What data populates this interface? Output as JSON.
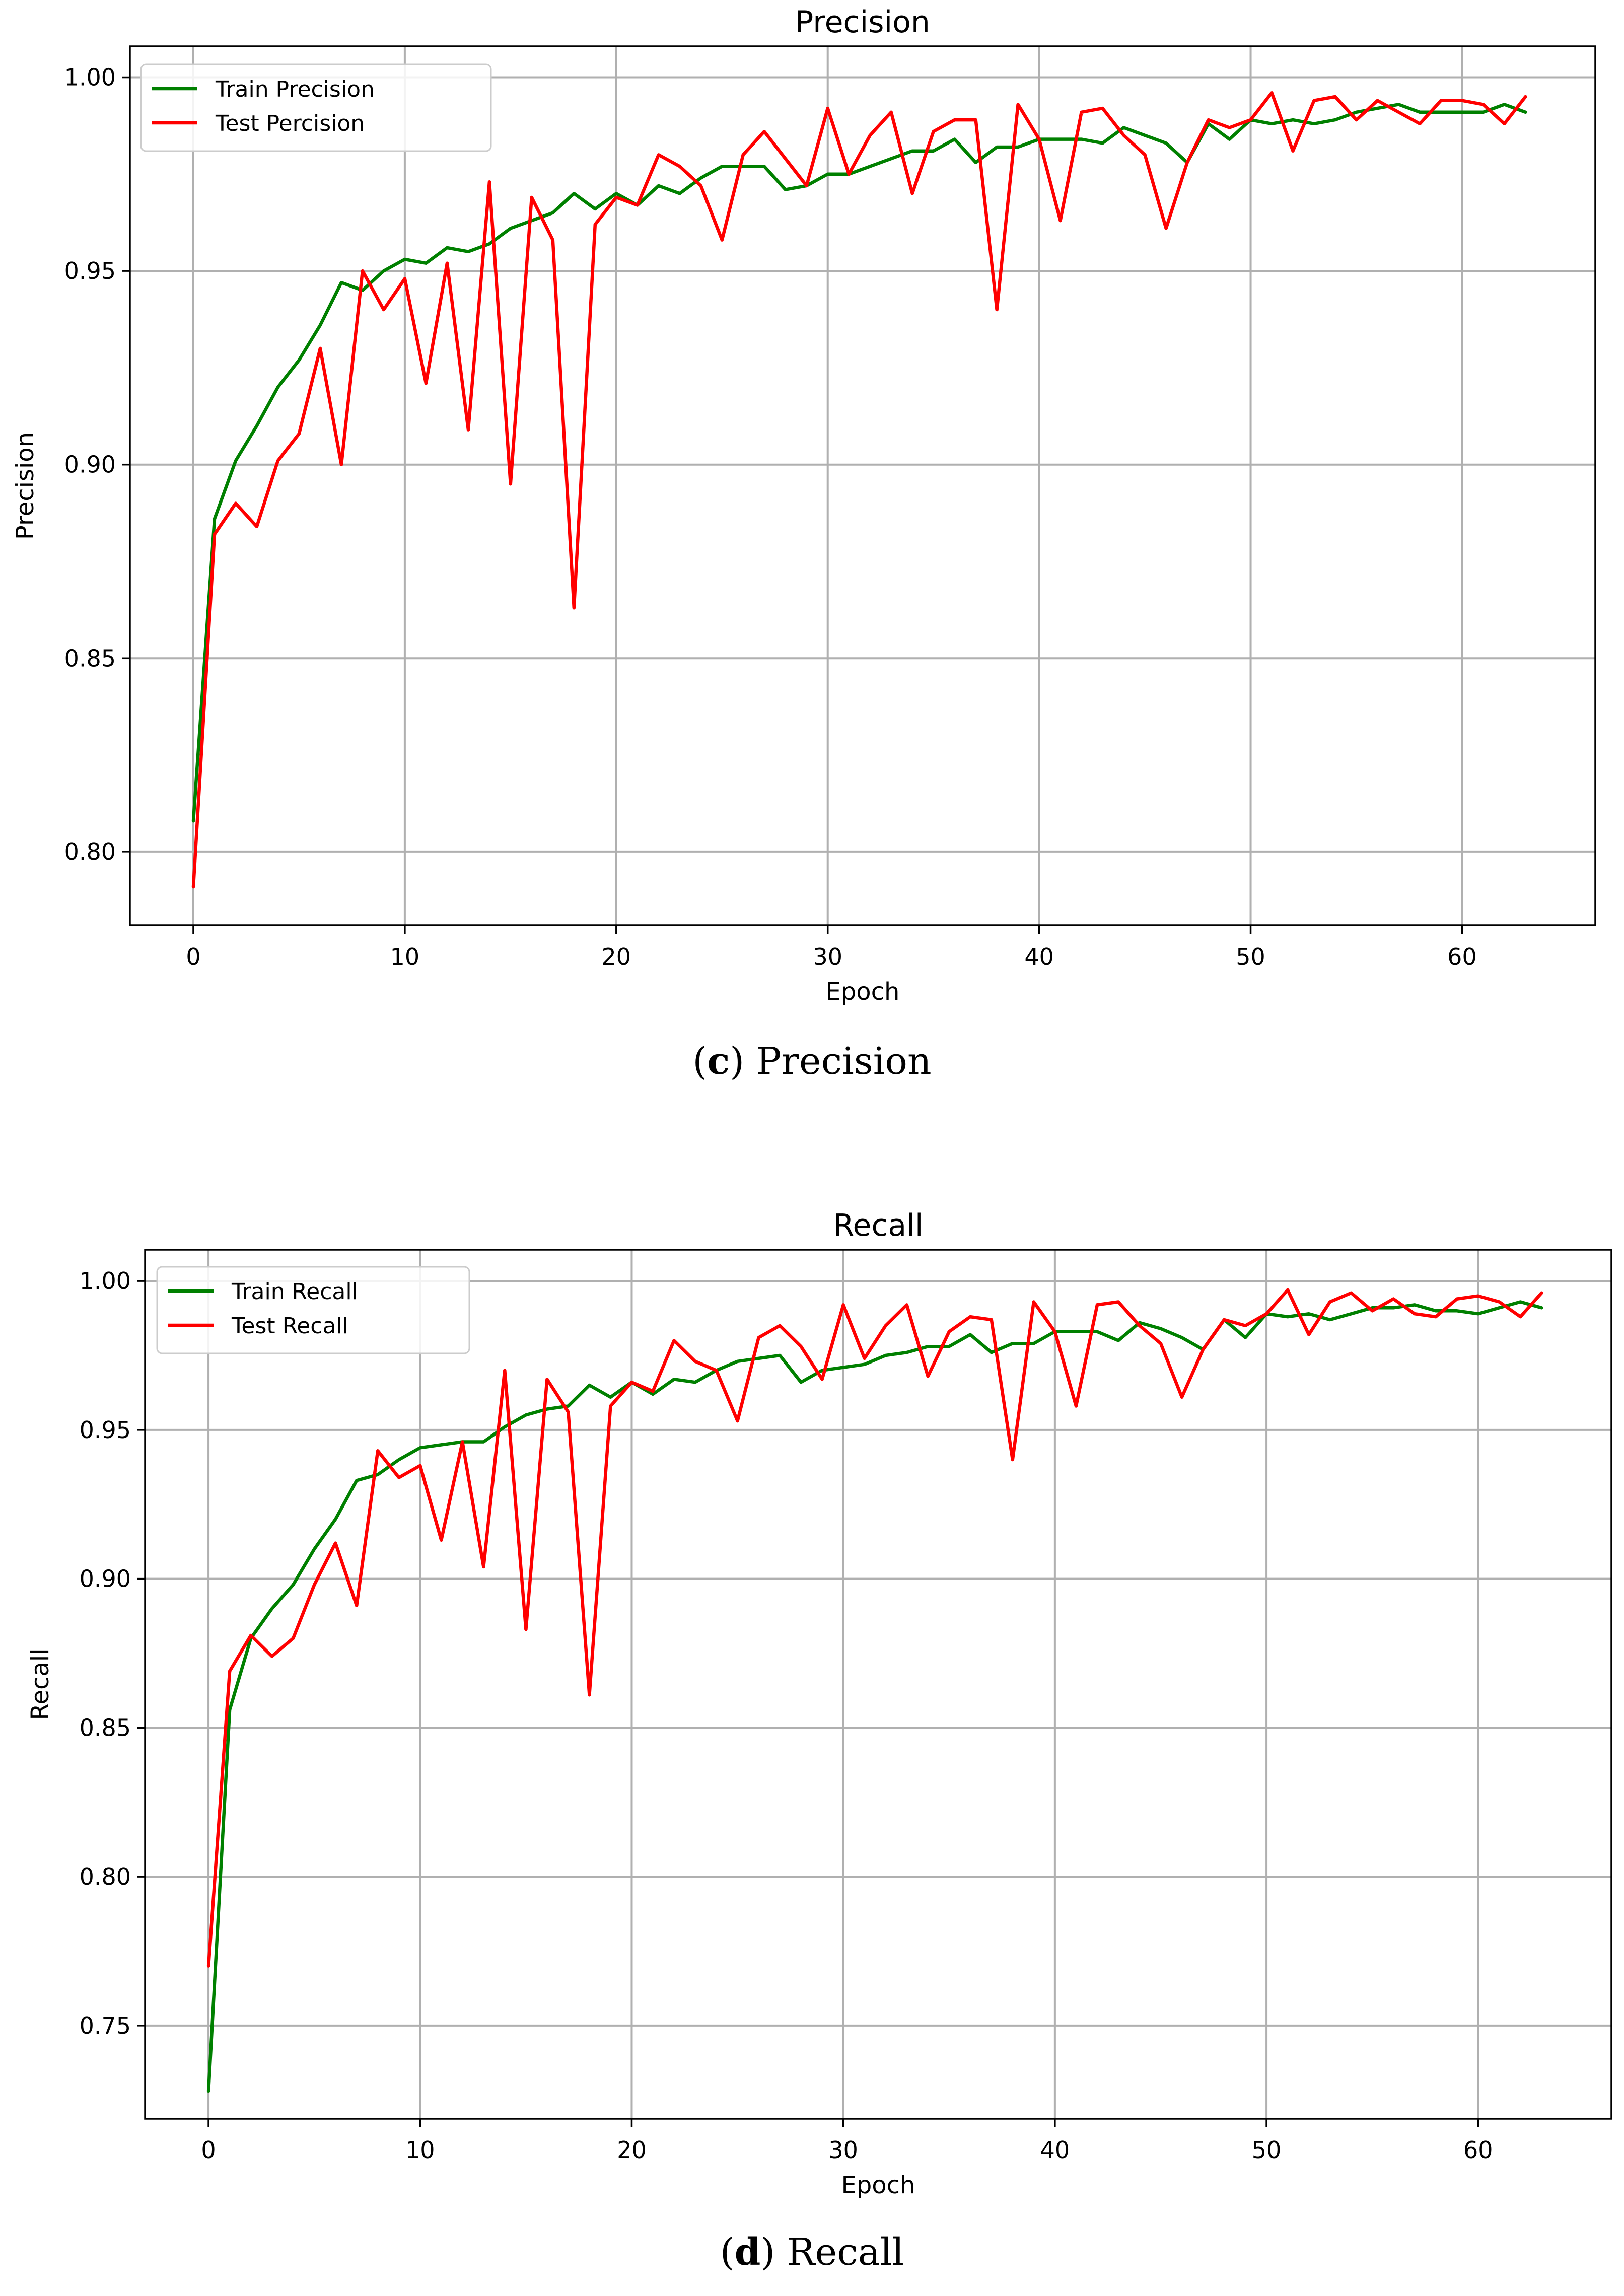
{
  "colors": {
    "train": "#008000",
    "test": "#ff0000",
    "grid": "#b0b0b0",
    "axes": "#000000"
  },
  "chart_data": [
    {
      "type": "line",
      "title": "Precision",
      "xlabel": "Epoch",
      "ylabel": "Precision",
      "xlim": [
        -3,
        66.3
      ],
      "ylim": [
        0.781,
        1.008
      ],
      "xticks": [
        0,
        10,
        20,
        30,
        40,
        50,
        60
      ],
      "yticks": [
        0.8,
        0.85,
        0.9,
        0.95,
        1.0
      ],
      "ytick_labels": [
        "0.80",
        "0.85",
        "0.90",
        "0.95",
        "1.00"
      ],
      "grid": true,
      "legend_position": "upper-left",
      "caption_letter": "c",
      "caption_text": "Precision",
      "series": [
        {
          "name": "Train Precision",
          "color": "#008000",
          "values": [
            0.808,
            0.886,
            0.901,
            0.91,
            0.92,
            0.927,
            0.936,
            0.947,
            0.945,
            0.95,
            0.953,
            0.952,
            0.956,
            0.955,
            0.957,
            0.961,
            0.963,
            0.965,
            0.97,
            0.966,
            0.97,
            0.967,
            0.972,
            0.97,
            0.974,
            0.977,
            0.977,
            0.977,
            0.971,
            0.972,
            0.975,
            0.975,
            0.977,
            0.979,
            0.981,
            0.981,
            0.984,
            0.978,
            0.982,
            0.982,
            0.984,
            0.984,
            0.984,
            0.983,
            0.987,
            0.985,
            0.983,
            0.978,
            0.988,
            0.984,
            0.989,
            0.988,
            0.989,
            0.988,
            0.989,
            0.991,
            0.992,
            0.993,
            0.991,
            0.991,
            0.991,
            0.991,
            0.993,
            0.991
          ]
        },
        {
          "name": "Test Percision",
          "color": "#ff0000",
          "values": [
            0.791,
            0.882,
            0.89,
            0.884,
            0.901,
            0.908,
            0.93,
            0.9,
            0.95,
            0.94,
            0.948,
            0.921,
            0.952,
            0.909,
            0.973,
            0.895,
            0.969,
            0.958,
            0.863,
            0.962,
            0.969,
            0.967,
            0.98,
            0.977,
            0.972,
            0.958,
            0.98,
            0.986,
            0.979,
            0.972,
            0.992,
            0.975,
            0.985,
            0.991,
            0.97,
            0.986,
            0.989,
            0.989,
            0.94,
            0.993,
            0.984,
            0.963,
            0.991,
            0.992,
            0.985,
            0.98,
            0.961,
            0.978,
            0.989,
            0.987,
            0.989,
            0.996,
            0.981,
            0.994,
            0.995,
            0.989,
            0.994,
            0.991,
            0.988,
            0.994,
            0.994,
            0.993,
            0.988,
            0.995
          ]
        }
      ]
    },
    {
      "type": "line",
      "title": "Recall",
      "xlabel": "Epoch",
      "ylabel": "Recall",
      "xlim": [
        -3,
        66.3
      ],
      "ylim": [
        0.7187,
        1.0105
      ],
      "xticks": [
        0,
        10,
        20,
        30,
        40,
        50,
        60
      ],
      "yticks": [
        0.75,
        0.8,
        0.85,
        0.9,
        0.95,
        1.0
      ],
      "ytick_labels": [
        "0.75",
        "0.80",
        "0.85",
        "0.90",
        "0.95",
        "1.00"
      ],
      "grid": true,
      "legend_position": "upper-left",
      "caption_letter": "d",
      "caption_text": "Recall",
      "series": [
        {
          "name": "Train Recall",
          "color": "#008000",
          "values": [
            0.728,
            0.856,
            0.88,
            0.89,
            0.898,
            0.91,
            0.92,
            0.933,
            0.935,
            0.94,
            0.944,
            0.945,
            0.946,
            0.946,
            0.951,
            0.955,
            0.957,
            0.958,
            0.965,
            0.961,
            0.966,
            0.962,
            0.967,
            0.966,
            0.97,
            0.973,
            0.974,
            0.975,
            0.966,
            0.97,
            0.971,
            0.972,
            0.975,
            0.976,
            0.978,
            0.978,
            0.982,
            0.976,
            0.979,
            0.979,
            0.983,
            0.983,
            0.983,
            0.98,
            0.986,
            0.984,
            0.981,
            0.977,
            0.987,
            0.981,
            0.989,
            0.988,
            0.989,
            0.987,
            0.989,
            0.991,
            0.991,
            0.992,
            0.99,
            0.99,
            0.989,
            0.991,
            0.993,
            0.991
          ]
        },
        {
          "name": "Test Recall",
          "color": "#ff0000",
          "values": [
            0.77,
            0.869,
            0.881,
            0.874,
            0.88,
            0.898,
            0.912,
            0.891,
            0.943,
            0.934,
            0.938,
            0.913,
            0.946,
            0.904,
            0.97,
            0.883,
            0.967,
            0.956,
            0.861,
            0.958,
            0.966,
            0.963,
            0.98,
            0.973,
            0.97,
            0.953,
            0.981,
            0.985,
            0.978,
            0.967,
            0.992,
            0.974,
            0.985,
            0.992,
            0.968,
            0.983,
            0.988,
            0.987,
            0.94,
            0.993,
            0.983,
            0.958,
            0.992,
            0.993,
            0.985,
            0.979,
            0.961,
            0.977,
            0.987,
            0.985,
            0.989,
            0.997,
            0.982,
            0.993,
            0.996,
            0.99,
            0.994,
            0.989,
            0.988,
            0.994,
            0.995,
            0.993,
            0.988,
            0.996
          ]
        }
      ]
    }
  ]
}
